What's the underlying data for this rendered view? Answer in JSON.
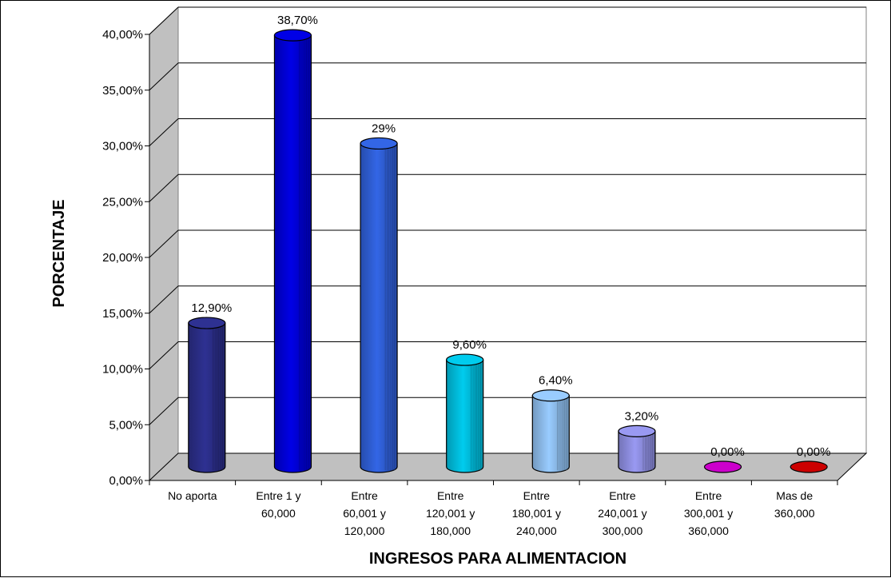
{
  "chart_data": {
    "type": "bar",
    "style": "3d-cylinder",
    "xlabel": "INGRESOS PARA ALIMENTACION",
    "ylabel": "PORCENTAJE",
    "ylim": [
      0,
      40
    ],
    "yticks": [
      "0,00%",
      "5,00%",
      "10,00%",
      "15,00%",
      "20,00%",
      "25,00%",
      "30,00%",
      "35,00%",
      "40,00%"
    ],
    "grid": true,
    "categories": [
      [
        "No aporta"
      ],
      [
        "Entre 1 y",
        "60,000"
      ],
      [
        "Entre",
        "60,001 y",
        "120,000"
      ],
      [
        "Entre",
        "120,001 y",
        "180,000"
      ],
      [
        "Entre",
        "180,001 y",
        "240,000"
      ],
      [
        "Entre",
        "240,001 y",
        "300,000"
      ],
      [
        "Entre",
        "300,001 y",
        "360,000"
      ],
      [
        "Mas de",
        "360,000"
      ]
    ],
    "values": [
      12.9,
      38.7,
      29,
      9.6,
      6.4,
      3.2,
      0,
      0
    ],
    "data_labels": [
      "12,90%",
      "38,70%",
      "29%",
      "9,60%",
      "6,40%",
      "3,20%",
      "0,00%",
      "0,00%"
    ],
    "colors": [
      "#2E3192",
      "#0000E6",
      "#3366E6",
      "#00CCEE",
      "#99CCFF",
      "#9999F2",
      "#CC00CC",
      "#CC0000"
    ]
  }
}
